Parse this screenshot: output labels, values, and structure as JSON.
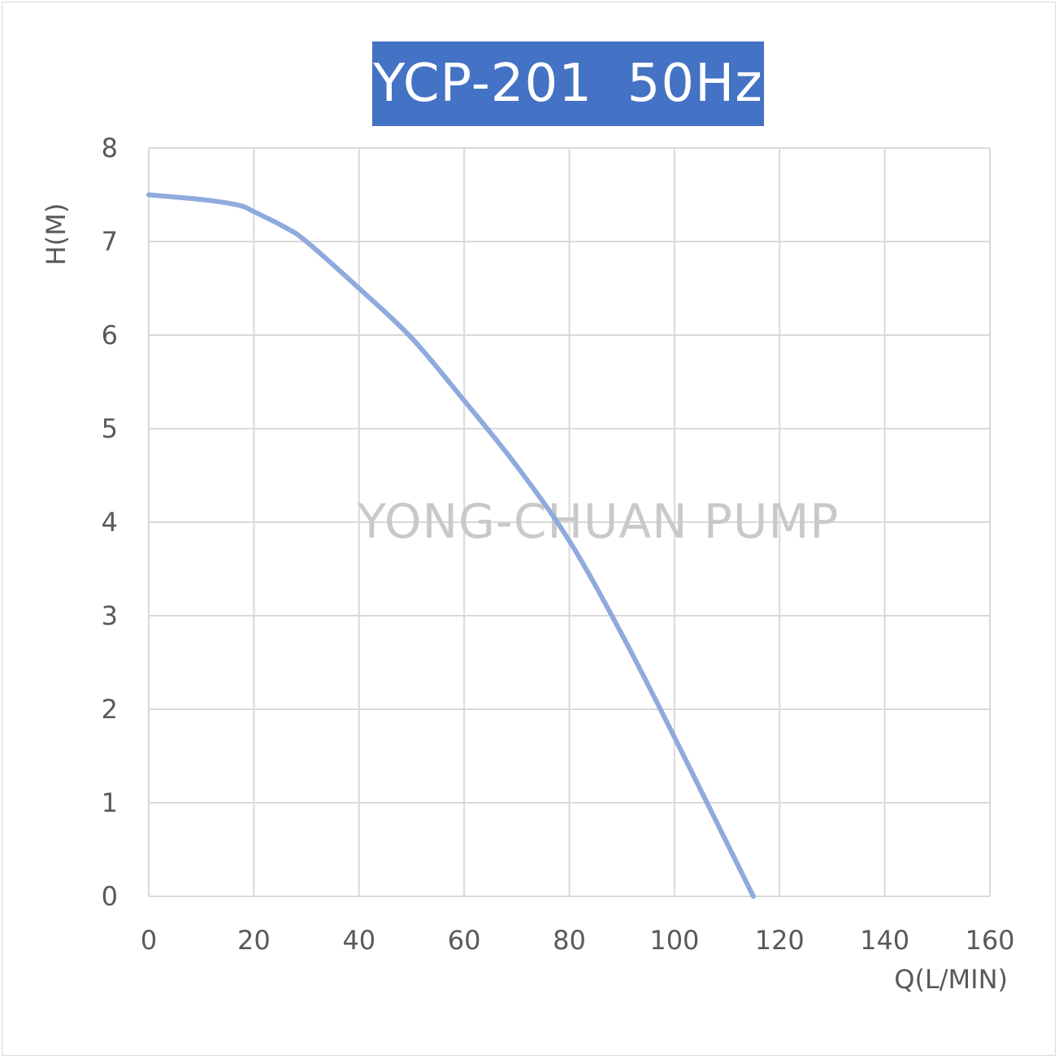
{
  "chart_data": {
    "type": "line",
    "title": "YCP-201  50Hz",
    "xlabel": "Q(L/MIN)",
    "ylabel": "H(M)",
    "xlim": [
      0,
      160
    ],
    "ylim": [
      0,
      8
    ],
    "xticks": [
      0,
      20,
      40,
      60,
      80,
      100,
      120,
      140,
      160
    ],
    "yticks": [
      0,
      1,
      2,
      3,
      4,
      5,
      6,
      7,
      8
    ],
    "grid": true,
    "watermark": "YONG-CHUAN PUMP",
    "series": [
      {
        "color": "#8faadc",
        "x": [
          0,
          10,
          17,
          20,
          26,
          30,
          40,
          50,
          60,
          70,
          80,
          90,
          100,
          115
        ],
        "y": [
          7.5,
          7.45,
          7.39,
          7.32,
          7.15,
          7.0,
          6.5,
          5.97,
          5.3,
          4.6,
          3.8,
          2.8,
          1.7,
          0
        ]
      }
    ]
  }
}
